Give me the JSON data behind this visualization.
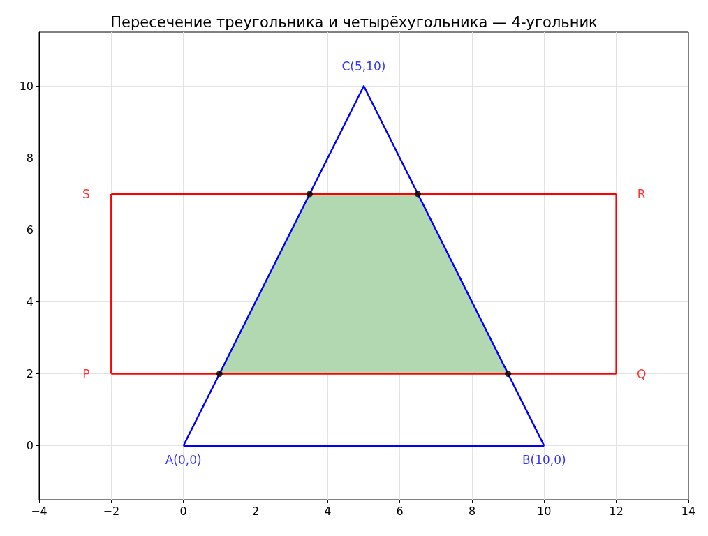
{
  "chart_data": {
    "type": "line",
    "title": "Пересечение треугольника и четырёхугольника — 4-угольник",
    "xlim": [
      -4,
      14
    ],
    "xticks": [
      -4,
      -2,
      0,
      2,
      4,
      6,
      8,
      10,
      12,
      14
    ],
    "ylim": [
      -1.5,
      11.5
    ],
    "yticks": [
      0,
      2,
      4,
      6,
      8,
      10
    ],
    "grid": true,
    "series": [
      {
        "type": "area",
        "color": "#b2d8b2",
        "x": [
          1,
          9,
          6.5,
          3.5,
          1
        ],
        "values": [
          2,
          2,
          7,
          7,
          2
        ]
      },
      {
        "color": "#0000ff",
        "x": [
          0,
          5,
          10
        ],
        "values": [
          0,
          10,
          0
        ]
      },
      {
        "color": "#0000ff",
        "x": [
          0,
          10
        ],
        "values": [
          0,
          0
        ]
      },
      {
        "color": "#ff0000",
        "x": [
          -2,
          12
        ],
        "values": [
          2,
          2
        ]
      },
      {
        "color": "#ff0000",
        "x": [
          -2,
          12
        ],
        "values": [
          7,
          7
        ]
      },
      {
        "color": "#ff0000",
        "x": [
          -2,
          -2
        ],
        "values": [
          2,
          7
        ]
      },
      {
        "color": "#ff0000",
        "x": [
          12,
          12
        ],
        "values": [
          2,
          7
        ]
      },
      {
        "type": "scatter",
        "color": "#000000",
        "x": [
          1,
          9,
          6.5,
          3.5
        ],
        "values": [
          2,
          2,
          7,
          7
        ]
      }
    ],
    "annotations": [
      {
        "text": "A(0,0)",
        "x": 0,
        "y": 0
      },
      {
        "text": "B(10,0)",
        "x": 10,
        "y": 0
      },
      {
        "text": "C(5,10)",
        "x": 5,
        "y": 10
      },
      {
        "text": "P",
        "x": -2,
        "y": 2
      },
      {
        "text": "Q",
        "x": 12,
        "y": 2
      },
      {
        "text": "R",
        "x": 12,
        "y": 7
      },
      {
        "text": "S",
        "x": -2,
        "y": 7
      }
    ]
  }
}
